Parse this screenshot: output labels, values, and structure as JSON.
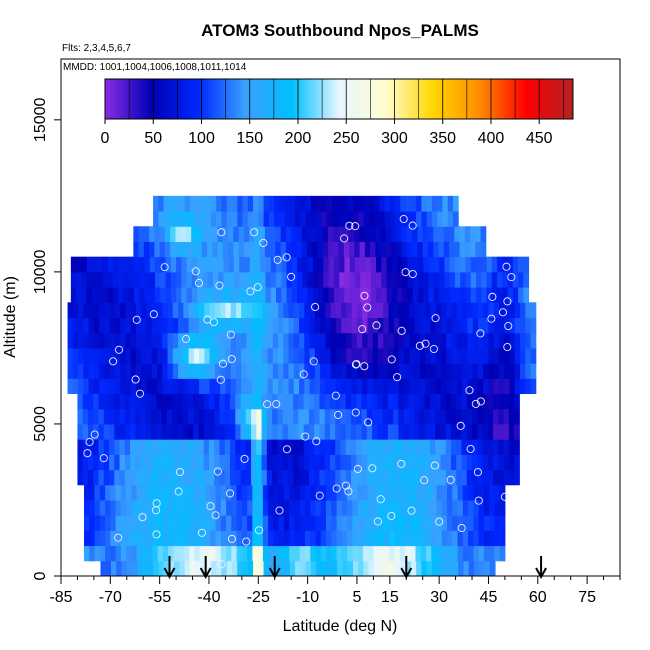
{
  "chart_data": {
    "type": "heatmap",
    "title": "ATOM3 Southbound Npos_PALMS",
    "subtitle_flights": "Flts: 2,3,4,5,6,7",
    "subtitle_dates": "MMDD: 1001,1004,1006,1008,1011,1014",
    "xlabel": "Latitude (deg N)",
    "ylabel": "Altitude (m)",
    "xlim": [
      -85,
      85
    ],
    "ylim": [
      0,
      17000
    ],
    "x_ticks": [
      "-85",
      "-70",
      "-55",
      "-40",
      "-25",
      "-10",
      "5",
      "15",
      "30",
      "45",
      "60",
      "75"
    ],
    "x_tick_values": [
      -85,
      -70,
      -55,
      -40,
      -25,
      -10,
      5,
      15,
      30,
      45,
      60,
      75
    ],
    "y_ticks": [
      "0",
      "5000",
      "10000",
      "15000"
    ],
    "y_tick_values": [
      0,
      5000,
      10000,
      15000
    ],
    "colorbar": {
      "range": [
        0,
        485
      ],
      "tick_labels": [
        "0",
        "50",
        "100",
        "150",
        "200",
        "250",
        "300",
        "350",
        "400",
        "450"
      ],
      "tick_values": [
        0,
        50,
        100,
        150,
        200,
        250,
        300,
        350,
        400,
        450
      ],
      "colors": [
        "#8a2be2",
        "#0000b4",
        "#0028ff",
        "#3aa0ff",
        "#00bfff",
        "#e6f6ff",
        "#fffdd0",
        "#ffd700",
        "#ff8c00",
        "#ff0000",
        "#b22222"
      ]
    },
    "arrow_latitudes": [
      -52,
      -41,
      -20,
      20,
      61
    ],
    "grid": false,
    "colors": {
      "low": "#8a2be2",
      "mid": "#3aa0ff",
      "neutral": "#fffdd0",
      "high": "#ff8c00",
      "max": "#b22222"
    }
  }
}
